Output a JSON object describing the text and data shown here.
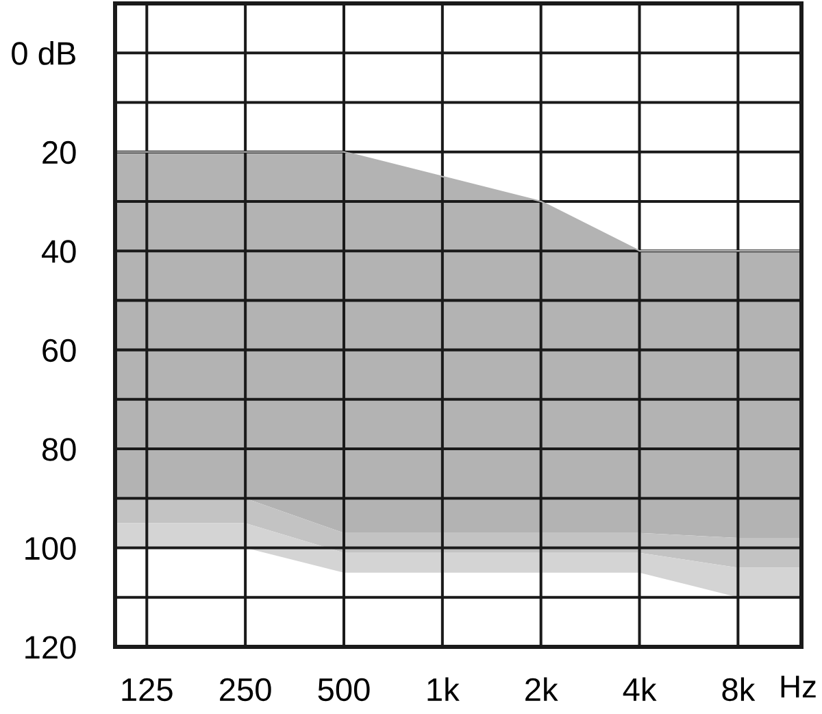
{
  "chart_data": {
    "type": "area",
    "xlabel": "Hz",
    "log": "x",
    "grid": true,
    "x": [
      100,
      125,
      250,
      500,
      1000,
      2000,
      4000,
      8000,
      12500
    ],
    "series": [
      {
        "type": "line",
        "color": "#b3b3b3",
        "values": [
          20,
          20,
          20,
          20,
          25,
          30,
          40,
          40,
          40
        ]
      },
      {
        "color": "#b3b3b3",
        "values": [
          90,
          90,
          90,
          97,
          97,
          97,
          97,
          98,
          98
        ]
      },
      {
        "color": "#c3c3c3",
        "values": [
          95,
          95,
          95,
          101,
          101,
          101,
          101,
          104,
          104
        ]
      },
      {
        "color": "#d4d4d4",
        "values": [
          100,
          100,
          100,
          105,
          105,
          105,
          105,
          110,
          110
        ]
      }
    ],
    "xlim": [
      100,
      12500
    ],
    "xticks": [
      125,
      250,
      500,
      {
        "value": 1000,
        "label": "1k"
      },
      {
        "value": 2000,
        "label": "2k"
      },
      {
        "value": 4000,
        "label": "4k"
      },
      {
        "value": 8000,
        "label": "8k"
      }
    ],
    "ylim": [
      120,
      -10
    ],
    "yticks": [
      {
        "value": 0,
        "label": "0 dB"
      },
      {
        "value": 10,
        "label": null
      },
      20,
      {
        "value": 30,
        "label": null
      },
      40,
      {
        "value": 50,
        "label": null
      },
      60,
      {
        "value": 70,
        "label": null
      },
      80,
      {
        "value": 90,
        "label": null
      },
      100,
      {
        "value": 110,
        "label": null
      },
      120
    ]
  }
}
